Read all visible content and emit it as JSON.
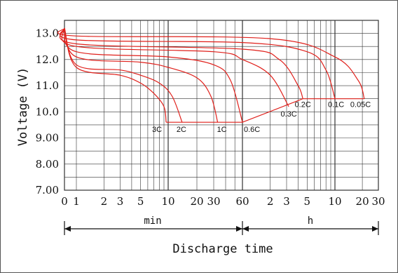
{
  "chart_data": {
    "type": "line",
    "title": "",
    "ylabel": "Voltage (V)",
    "xlabel": "Discharge time",
    "ylim": [
      7.0,
      13.5
    ],
    "y_ticks": [
      "13.0",
      "12.0",
      "11.0",
      "10.0",
      "9.00",
      "8.00",
      "7.00"
    ],
    "x_tick_labels": [
      "0",
      "1",
      "2",
      "3",
      "5",
      "10",
      "20",
      "30",
      "60",
      "2",
      "3",
      "5",
      "10",
      "20",
      "30"
    ],
    "x_scale": "log (minutes, then hours)",
    "x_units": {
      "min_label": "min",
      "h_label": "h"
    },
    "grid": true,
    "series": [
      {
        "name": "3C",
        "points": [
          [
            0,
            13.2
          ],
          [
            1,
            11.7
          ],
          [
            3,
            11.4
          ],
          [
            5,
            11.1
          ],
          [
            7,
            10.7
          ],
          [
            9,
            10.2
          ],
          [
            9.5,
            9.6
          ]
        ],
        "end_min": 9.5
      },
      {
        "name": "2C",
        "points": [
          [
            0,
            13.2
          ],
          [
            1,
            11.8
          ],
          [
            3,
            11.6
          ],
          [
            5,
            11.4
          ],
          [
            8,
            11.1
          ],
          [
            11,
            10.6
          ],
          [
            14,
            9.6
          ]
        ],
        "end_min": 14
      },
      {
        "name": "1C",
        "points": [
          [
            0,
            13.2
          ],
          [
            1,
            12.1
          ],
          [
            5,
            11.9
          ],
          [
            10,
            11.7
          ],
          [
            20,
            11.3
          ],
          [
            28,
            10.6
          ],
          [
            33,
            9.6
          ]
        ],
        "end_min": 33
      },
      {
        "name": "0.6C",
        "points": [
          [
            0,
            13.2
          ],
          [
            1,
            12.3
          ],
          [
            10,
            12.1
          ],
          [
            30,
            11.8
          ],
          [
            45,
            11.2
          ],
          [
            60,
            9.6
          ]
        ],
        "end_min": 60
      },
      {
        "name": "0.3C",
        "points": [
          [
            0,
            13.2
          ],
          [
            1,
            12.5
          ],
          [
            30,
            12.3
          ],
          [
            60,
            12.0
          ],
          [
            120,
            11.4
          ],
          [
            190,
            10.2
          ]
        ],
        "end_min": 190
      },
      {
        "name": "0.2C",
        "points": [
          [
            0,
            13.2
          ],
          [
            1,
            12.6
          ],
          [
            60,
            12.4
          ],
          [
            150,
            12.0
          ],
          [
            240,
            11.0
          ],
          [
            270,
            10.5
          ]
        ],
        "end_min": 270
      },
      {
        "name": "0.1C",
        "points": [
          [
            0,
            13.2
          ],
          [
            1,
            12.75
          ],
          [
            60,
            12.65
          ],
          [
            300,
            12.3
          ],
          [
            480,
            11.6
          ],
          [
            600,
            10.5
          ]
        ],
        "end_min": 600
      },
      {
        "name": "0.05C",
        "points": [
          [
            0,
            13.2
          ],
          [
            1,
            12.9
          ],
          [
            120,
            12.8
          ],
          [
            600,
            12.1
          ],
          [
            1080,
            11.2
          ],
          [
            1260,
            10.5
          ]
        ],
        "end_min": 1260
      }
    ],
    "cutoff_line": {
      "points": [
        [
          9.5,
          9.6
        ],
        [
          60,
          9.6
        ],
        [
          270,
          10.5
        ],
        [
          1260,
          10.5
        ]
      ]
    }
  }
}
